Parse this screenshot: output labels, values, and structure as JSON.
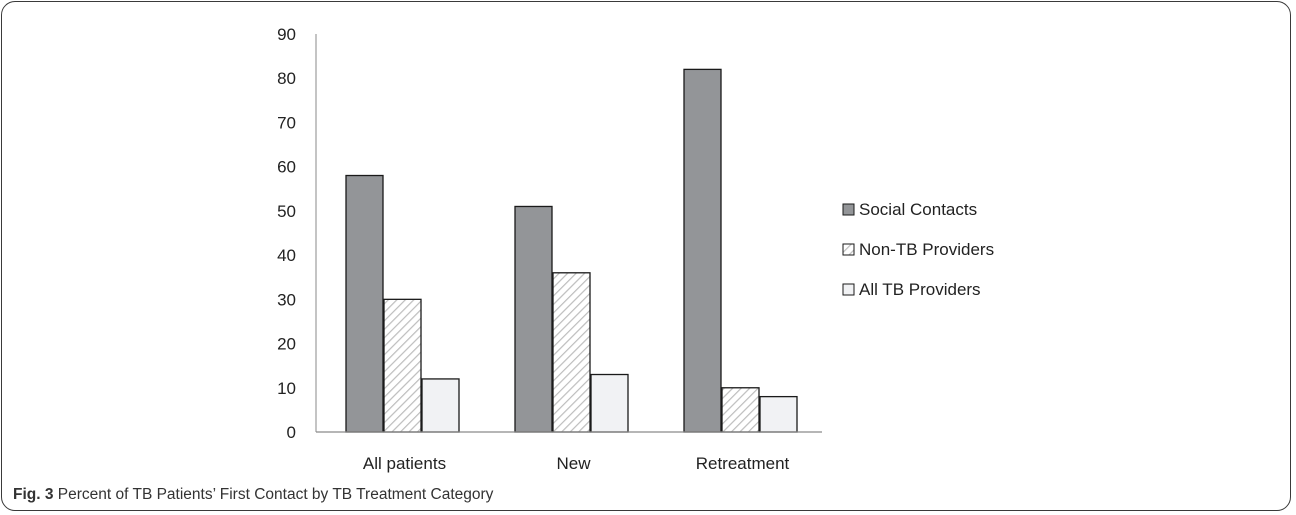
{
  "caption": {
    "label": "Fig. 3",
    "text": "Percent of TB Patients’ First Contact by TB Treatment Category"
  },
  "chart_data": {
    "type": "bar",
    "categories": [
      "All patients",
      "New",
      "Retreatment"
    ],
    "series": [
      {
        "name": "Social Contacts",
        "values": [
          58,
          51,
          82
        ],
        "color": "#939598",
        "pattern": "solid"
      },
      {
        "name": "Non-TB Providers",
        "values": [
          30,
          36,
          10
        ],
        "color": "#ffffff",
        "pattern": "diagonal-hatch"
      },
      {
        "name": "All TB Providers",
        "values": [
          12,
          13,
          8
        ],
        "color": "#f1f2f4",
        "pattern": "solid"
      }
    ],
    "yticks": [
      0,
      10,
      20,
      30,
      40,
      50,
      60,
      70,
      80,
      90
    ],
    "ylim": [
      0,
      90
    ],
    "title": "",
    "xlabel": "",
    "ylabel": "",
    "legend": "right",
    "grid": false
  }
}
